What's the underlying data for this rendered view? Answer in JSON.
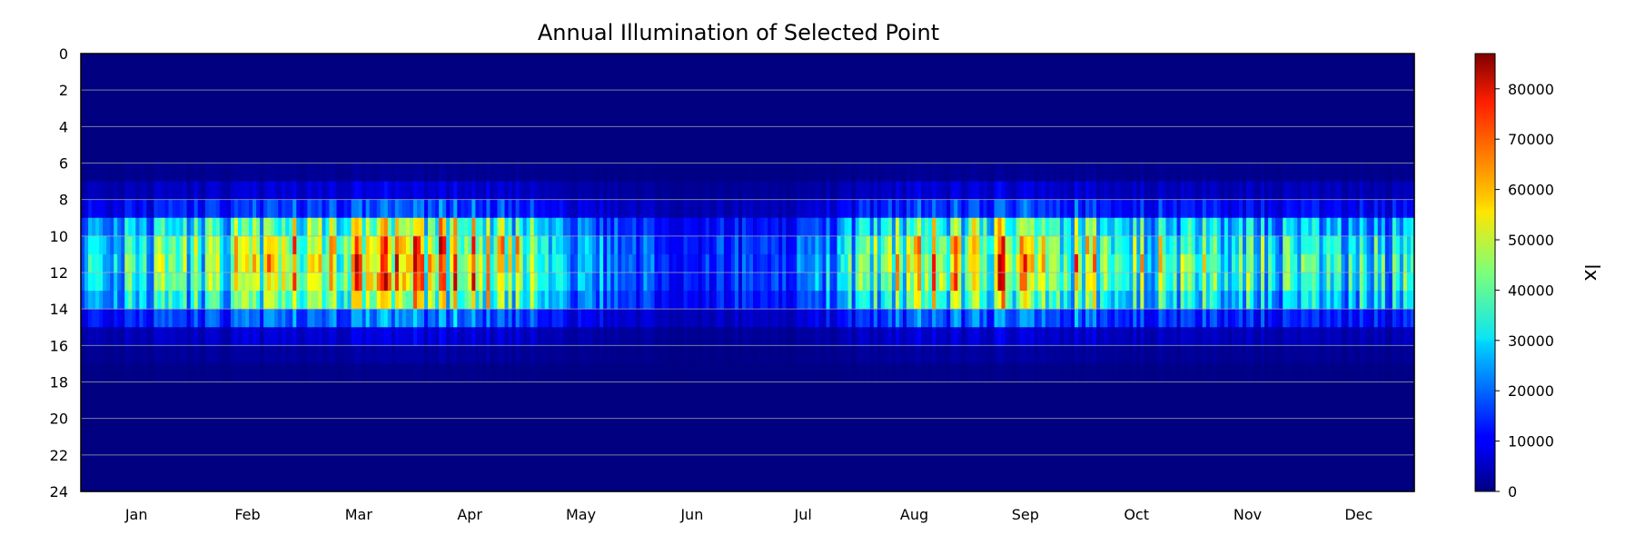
{
  "chart_data": {
    "type": "heatmap",
    "title": "Annual Illumination of Selected Point",
    "xlabel": "",
    "ylabel": "",
    "colorbar_label": "lx",
    "colormap": "jet",
    "x_tick_labels": [
      "Jan",
      "Feb",
      "Mar",
      "Apr",
      "May",
      "Jun",
      "Jul",
      "Aug",
      "Sep",
      "Oct",
      "Nov",
      "Dec"
    ],
    "y_tick_labels": [
      "0",
      "2",
      "4",
      "6",
      "8",
      "10",
      "12",
      "14",
      "16",
      "18",
      "20",
      "22",
      "24"
    ],
    "y_range": [
      0,
      24
    ],
    "y_inverted": true,
    "colorbar_range": [
      0,
      87000
    ],
    "colorbar_tick_labels": [
      "0",
      "10000",
      "20000",
      "30000",
      "40000",
      "50000",
      "60000",
      "70000",
      "80000"
    ],
    "grid": "horizontal lines every 2 hours",
    "x_unit": "day of year (1-365)",
    "y_unit": "hour of day",
    "hour_profile_lx": [
      0,
      0,
      0,
      0,
      0,
      0,
      2000,
      8000,
      18000,
      45000,
      55000,
      58000,
      56000,
      47000,
      22000,
      8000,
      3000,
      1000,
      0,
      0,
      0,
      0,
      0,
      0
    ],
    "monthly_mean_peak_lx": [
      {
        "month": "Jan",
        "peak": 40000
      },
      {
        "month": "Feb",
        "peak": 52000
      },
      {
        "month": "Mar",
        "peak": 72000
      },
      {
        "month": "Apr",
        "peak": 70000
      },
      {
        "month": "May",
        "peak": 30000
      },
      {
        "month": "Jun",
        "peak": 15000
      },
      {
        "month": "Jul",
        "peak": 22000
      },
      {
        "month": "Aug",
        "peak": 62000
      },
      {
        "month": "Sep",
        "peak": 65000
      },
      {
        "month": "Oct",
        "peak": 50000
      },
      {
        "month": "Nov",
        "peak": 42000
      },
      {
        "month": "Dec",
        "peak": 38000
      }
    ],
    "max_value_lx": 87000
  }
}
